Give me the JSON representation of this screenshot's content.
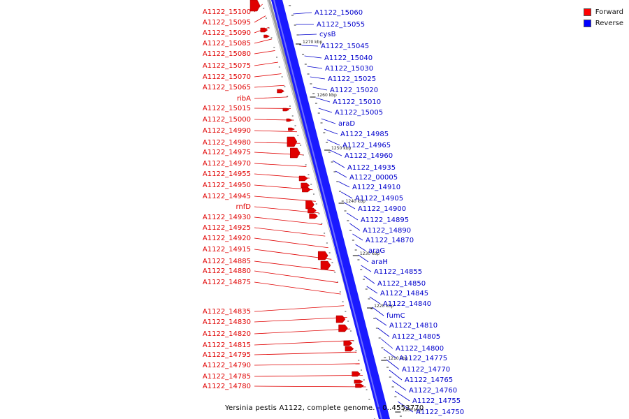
{
  "caption": "Yersinia pestis A1122, complete genome. - 0..4553770",
  "legend": [
    {
      "label": "Forward",
      "color": "#ff0000"
    },
    {
      "label": "Reverse",
      "color": "#0000ff"
    }
  ],
  "colors": {
    "forward": "#e00000",
    "reverse": "#0000cc",
    "track_blue": "#1a1aff",
    "backbone": "#888888"
  },
  "ticks": [
    "1270 kbp",
    "1260 kbp",
    "1250 kbp",
    "1240 kbp",
    "1230 kbp",
    "1220 kbp",
    "1210 kbp",
    "1200 kbp"
  ],
  "forward_labels": [
    "A1122_15100",
    "A1122_15095",
    "A1122_15090",
    "A1122_15085",
    "A1122_15080",
    "A1122_15075",
    "A1122_15070",
    "A1122_15065",
    "ribA",
    "A1122_15015",
    "A1122_15000",
    "A1122_14990",
    "A1122_14980",
    "A1122_14975",
    "A1122_14970",
    "A1122_14955",
    "A1122_14950",
    "A1122_14945",
    "rnfD",
    "A1122_14930",
    "A1122_14925",
    "A1122_14920",
    "A1122_14915",
    "A1122_14885",
    "A1122_14880",
    "A1122_14875",
    "A1122_14835",
    "A1122_14830",
    "A1122_14820",
    "A1122_14815",
    "A1122_14795",
    "A1122_14790",
    "A1122_14785",
    "A1122_14780"
  ],
  "reverse_labels": [
    "A1122_15060",
    "A1122_15055",
    "cysB",
    "A1122_15045",
    "A1122_15040",
    "A1122_15030",
    "A1122_15025",
    "A1122_15020",
    "A1122_15010",
    "A1122_15005",
    "araD",
    "A1122_14985",
    "A1122_14965",
    "A1122_14960",
    "A1122_14935",
    "A1122_00005",
    "A1122_14910",
    "A1122_14905",
    "A1122_14900",
    "A1122_14895",
    "A1122_14890",
    "A1122_14870",
    "araG",
    "araH",
    "A1122_14855",
    "A1122_14850",
    "A1122_14845",
    "A1122_14840",
    "fumC",
    "A1122_14810",
    "A1122_14805",
    "A1122_14800",
    "A1122_14775",
    "A1122_14770",
    "A1122_14765",
    "A1122_14760",
    "A1122_14755",
    "A1122_14750"
  ]
}
